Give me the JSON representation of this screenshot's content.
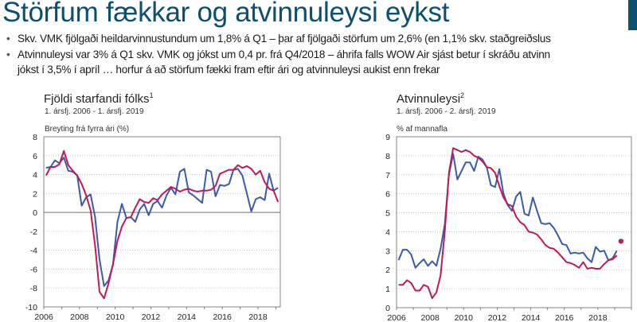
{
  "header": {
    "title": "Störfum fækkar og atvinnuleysi eykst"
  },
  "bullets": [
    {
      "text": "Skv. VMK fjölgaði heildarvinnustundum um 1,8% á Q1 – þar af fjölgaði störfum um 2,6% (en 1,1% skv. staðgreiðslus"
    },
    {
      "text": "Atvinnuleysi var 3% á Q1 skv. VMK og jókst um 0,4 pr. frá Q4/2018 – áhrifa falls WOW Air sjást betur í skráðu atvinn",
      "cont": "jókst í 3,5% í apríl … horfur á að störfum fækki fram eftir ári og atvinnuleysi aukist enn frekar"
    }
  ],
  "colors": {
    "title": "#0d4f6e",
    "blue": "#3b5ba8",
    "red": "#c2185b"
  },
  "chart_data": [
    {
      "type": "line",
      "title": "Fjöldi starfandi fólks",
      "title_sup": "1",
      "subtitle": "1. ársfj. 2006 - 1. ársfj. 2019",
      "ylabel": "Breyting frá fyrra ári (%)",
      "x_start": "2006Q1",
      "frequency": "quarterly",
      "xlim": [
        2006,
        2019.25
      ],
      "ylim": [
        -10,
        8
      ],
      "yticks": [
        -10,
        -8,
        -6,
        -4,
        -2,
        0,
        2,
        4,
        6,
        8
      ],
      "xticks": [
        2006,
        2008,
        2010,
        2012,
        2014,
        2016,
        2018
      ],
      "grid": true,
      "series": [
        {
          "color": "#3b5ba8",
          "values": [
            4.7,
            4.8,
            5.5,
            5.2,
            5.8,
            4.4,
            4.3,
            3.9,
            0.7,
            1.6,
            1.9,
            -0.5,
            -5.0,
            -7.8,
            -7.2,
            -5.5,
            -1.0,
            0.9,
            -0.6,
            -0.5,
            -1.0,
            0.3,
            0.9,
            -0.3,
            0.9,
            1.2,
            0.5,
            1.8,
            2.6,
            1.9,
            4.3,
            4.6,
            2.1,
            1.8,
            1.4,
            1.0,
            4.5,
            4.3,
            1.7,
            2.9,
            2.8,
            3.0,
            4.5,
            4.6,
            3.9,
            2.0,
            0.1,
            1.4,
            1.6,
            1.3,
            4.1,
            2.3,
            2.6
          ]
        },
        {
          "color": "#c2185b",
          "values": [
            3.9,
            4.8,
            4.8,
            5.1,
            6.5,
            5.0,
            4.4,
            3.9,
            3.0,
            1.8,
            0.2,
            -3.5,
            -8.4,
            -9.1,
            -7.5,
            -5.5,
            -3.0,
            -1.5,
            -0.6,
            -0.5,
            0.5,
            1.4,
            1.1,
            1.0,
            1.5,
            1.3,
            1.9,
            2.3,
            2.7,
            2.5,
            2.2,
            2.4,
            2.5,
            2.3,
            2.2,
            2.3,
            2.3,
            2.4,
            2.8,
            4.1,
            4.3,
            4.5,
            4.5,
            5.0,
            4.7,
            4.9,
            4.6,
            4.0,
            4.4,
            3.2,
            2.5,
            2.3,
            1.1
          ]
        }
      ]
    },
    {
      "type": "line",
      "title": "Atvinnuleysi",
      "title_sup": "2",
      "subtitle": "1. ársfj. 2006 - 2. ársfj. 2019",
      "ylabel": "% af mannafla",
      "x_start": "2006Q1",
      "frequency": "quarterly",
      "xlim": [
        2006,
        2020
      ],
      "ylim": [
        0,
        9
      ],
      "yticks": [
        0,
        1,
        2,
        3,
        4,
        5,
        6,
        7,
        8,
        9
      ],
      "xticks": [
        2006,
        2008,
        2010,
        2012,
        2014,
        2016,
        2018
      ],
      "grid": true,
      "series": [
        {
          "color": "#3b5ba8",
          "values": [
            2.5,
            3.05,
            3.05,
            2.8,
            2.1,
            2.35,
            2.55,
            2.2,
            2.45,
            2.2,
            3.1,
            4.4,
            7.0,
            8.1,
            6.75,
            7.2,
            7.65,
            7.65,
            7.2,
            7.95,
            7.8,
            7.4,
            6.45,
            6.35,
            7.3,
            6.0,
            5.4,
            5.1,
            5.85,
            6.1,
            4.95,
            4.85,
            5.8,
            5.1,
            4.45,
            4.4,
            4.45,
            4.2,
            3.8,
            3.35,
            3.3,
            2.85,
            2.9,
            2.85,
            2.9,
            2.6,
            2.4,
            3.2,
            2.95,
            3.0,
            2.5,
            2.6,
            3.0
          ]
        },
        {
          "color": "#c2185b",
          "values": [
            1.2,
            1.2,
            1.45,
            1.3,
            0.9,
            0.9,
            1.2,
            1.1,
            0.5,
            0.8,
            1.7,
            4.0,
            7.1,
            8.4,
            8.3,
            8.2,
            8.3,
            8.2,
            8.0,
            7.9,
            7.7,
            7.4,
            7.35,
            7.1,
            6.4,
            5.8,
            5.45,
            5.35,
            4.8,
            4.5,
            4.35,
            4.0,
            3.95,
            3.85,
            3.6,
            3.3,
            3.15,
            3.1,
            2.9,
            2.65,
            2.4,
            2.35,
            2.25,
            2.1,
            2.4,
            2.05,
            2.1,
            2.05,
            2.05,
            2.3,
            2.5,
            2.55,
            2.75
          ]
        }
      ],
      "points": [
        {
          "x": "2019Q2",
          "y": 3.5,
          "color": "#c2185b"
        }
      ]
    }
  ]
}
